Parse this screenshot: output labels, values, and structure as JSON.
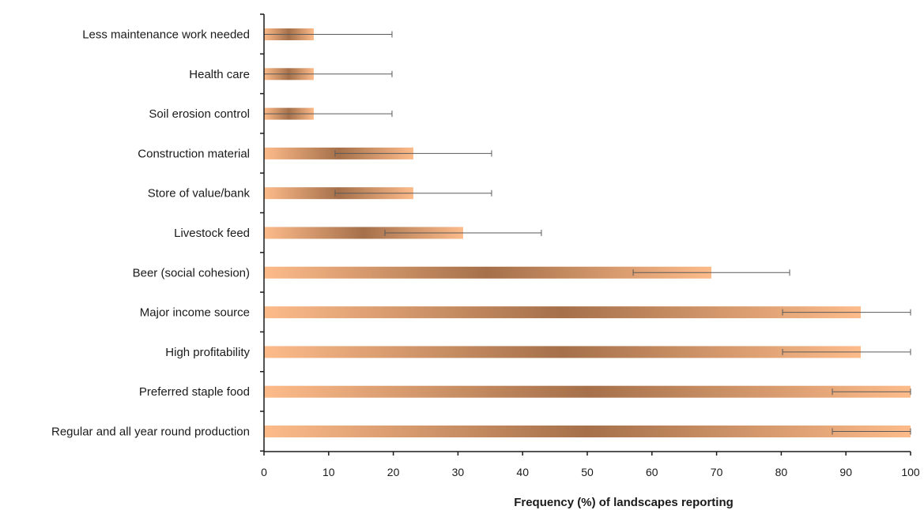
{
  "chart_data": {
    "type": "bar",
    "orientation": "horizontal",
    "categories": [
      "Less maintenance work needed",
      "Health care",
      "Soil erosion control",
      "Construction material",
      "Store of value/bank",
      "Livestock feed",
      "Beer (social cohesion)",
      "Major income source",
      "High profitability",
      "Preferred staple food",
      "Regular and all year round production"
    ],
    "values": [
      7.7,
      7.7,
      7.7,
      23.1,
      23.1,
      30.8,
      69.2,
      92.3,
      92.3,
      100,
      100
    ],
    "error_low": [
      0,
      0,
      0,
      11,
      11,
      18.7,
      57.1,
      80.2,
      80.2,
      87.9,
      87.9
    ],
    "error_high": [
      19.8,
      19.8,
      19.8,
      35.2,
      35.2,
      42.9,
      81.3,
      100,
      100,
      100,
      100
    ],
    "xlim": [
      0,
      100
    ],
    "xticks": [
      0,
      10,
      20,
      30,
      40,
      50,
      60,
      70,
      80,
      90,
      100
    ],
    "xlabel": "Frequency (%) of landscapes reporting",
    "ylabel": "",
    "title": "",
    "grid": false,
    "colors": {
      "bar_edge": "#fdbb8a",
      "bar_center": "#a5704a",
      "error_bar": "#5a5a5a",
      "axis": "#1a1a1a"
    }
  }
}
